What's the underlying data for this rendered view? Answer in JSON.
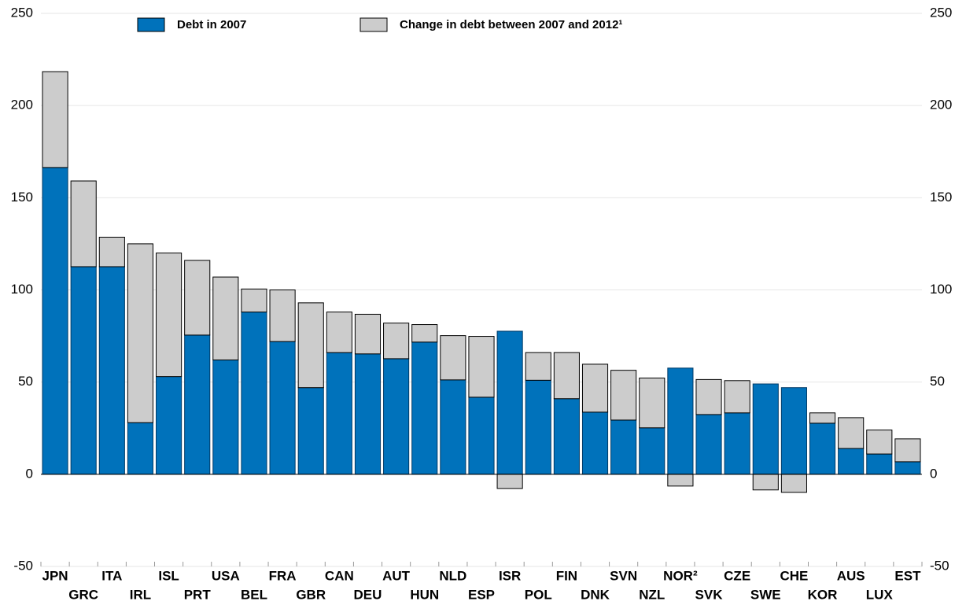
{
  "chart_data": {
    "type": "stacked_bar",
    "categories": [
      "JPN",
      "GRC",
      "ITA",
      "IRL",
      "ISL",
      "PRT",
      "USA",
      "BEL",
      "FRA",
      "GBR",
      "CAN",
      "DEU",
      "AUT",
      "HUN",
      "NLD",
      "ESP",
      "ISR",
      "POL",
      "FIN",
      "DNK",
      "SVN",
      "NZL",
      "NOR²",
      "SVK",
      "CZE",
      "SWE",
      "CHE",
      "KOR",
      "AUS",
      "LUX",
      "EST"
    ],
    "series": [
      {
        "name": "Debt in 2007",
        "color": "#0072bb",
        "values": [
          166.4,
          112.6,
          112.6,
          28,
          53,
          75.5,
          62,
          88,
          72,
          47,
          66,
          65.3,
          62.7,
          71.7,
          51.2,
          41.8,
          77.6,
          51,
          41,
          33.7,
          29.4,
          25.2,
          57.6,
          32.4,
          33.3,
          49,
          47,
          27.7,
          14,
          11,
          6.8
        ]
      },
      {
        "name": "Change in debt between 2007 and 2012¹",
        "color": "#cccccc",
        "values": [
          52,
          46.5,
          16,
          97,
          67,
          40.5,
          45,
          12.5,
          28,
          46,
          22,
          21.5,
          19.3,
          9.5,
          24,
          33,
          -7.7,
          15,
          25,
          26,
          27,
          27,
          -6.4,
          19,
          17.5,
          -8.5,
          -9.8,
          5.6,
          16.7,
          13,
          12.4
        ]
      }
    ],
    "ylim": [
      -50,
      250
    ],
    "yticks": [
      -50,
      0,
      50,
      100,
      150,
      200,
      250
    ],
    "grid": true
  }
}
